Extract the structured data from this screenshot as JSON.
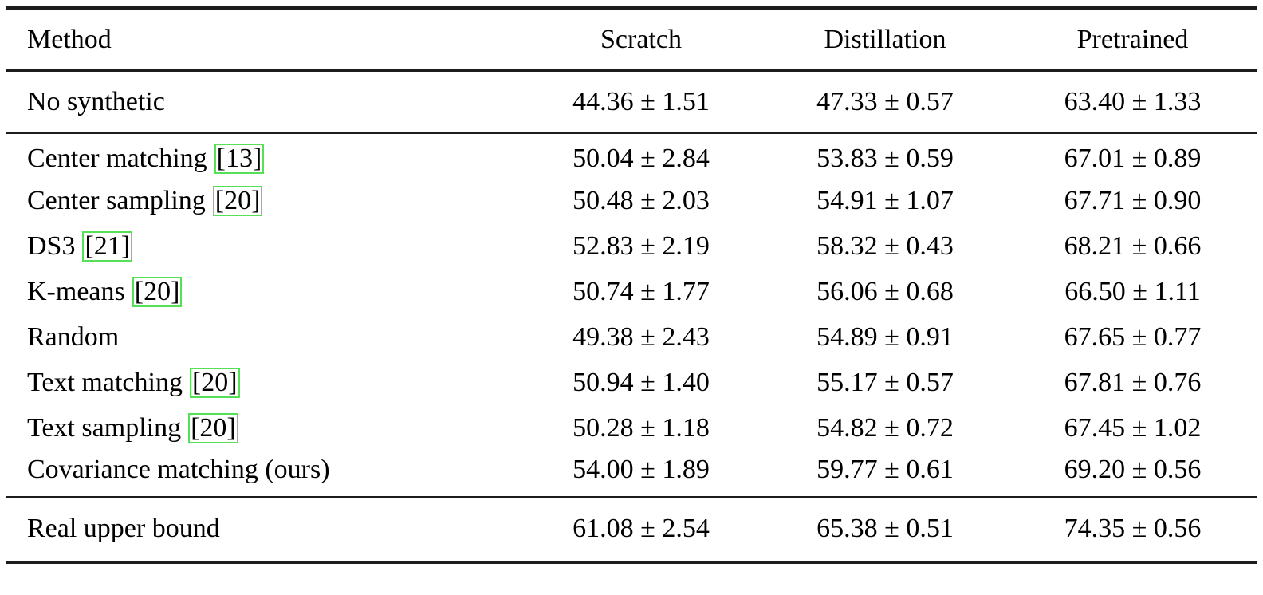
{
  "colors": {
    "citation_border": "#55e055",
    "rule": "#1c1c1c",
    "text": "#000000",
    "background": "#ffffff"
  },
  "table": {
    "header": {
      "method": "Method",
      "scratch": "Scratch",
      "distillation": "Distillation",
      "pretrained": "Pretrained"
    },
    "rows": [
      {
        "method": "No synthetic",
        "citation": "",
        "scratch": "44.36 ± 1.51",
        "distillation": "47.33 ± 0.57",
        "pretrained": "63.40 ± 1.33"
      },
      {
        "method": "Center matching",
        "citation": "[13]",
        "scratch": "50.04 ± 2.84",
        "distillation": "53.83 ± 0.59",
        "pretrained": "67.01 ± 0.89"
      },
      {
        "method": "Center sampling",
        "citation": "[20]",
        "scratch": "50.48 ± 2.03",
        "distillation": "54.91 ± 1.07",
        "pretrained": "67.71 ± 0.90"
      },
      {
        "method": "DS3",
        "citation": "[21]",
        "scratch": "52.83 ± 2.19",
        "distillation": "58.32 ± 0.43",
        "pretrained": "68.21 ± 0.66"
      },
      {
        "method": "K-means",
        "citation": "[20]",
        "scratch": "50.74 ± 1.77",
        "distillation": "56.06 ± 0.68",
        "pretrained": "66.50 ± 1.11"
      },
      {
        "method": "Random",
        "citation": "",
        "scratch": "49.38 ± 2.43",
        "distillation": "54.89 ± 0.91",
        "pretrained": "67.65 ± 0.77"
      },
      {
        "method": "Text matching",
        "citation": "[20]",
        "scratch": "50.94 ± 1.40",
        "distillation": "55.17 ± 0.57",
        "pretrained": "67.81 ± 0.76"
      },
      {
        "method": "Text sampling",
        "citation": "[20]",
        "scratch": "50.28 ± 1.18",
        "distillation": "54.82 ± 0.72",
        "pretrained": "67.45 ± 1.02"
      },
      {
        "method": "Covariance matching (ours)",
        "citation": "",
        "scratch": "54.00 ± 1.89",
        "distillation": "59.77 ± 0.61",
        "pretrained": "69.20 ± 0.56"
      },
      {
        "method": "Real upper bound",
        "citation": "",
        "scratch": "61.08 ± 2.54",
        "distillation": "65.38 ± 0.51",
        "pretrained": "74.35 ± 0.56"
      }
    ]
  }
}
